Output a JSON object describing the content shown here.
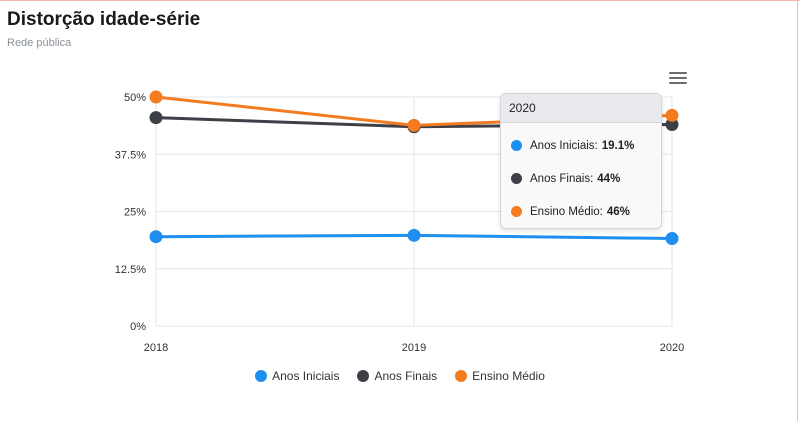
{
  "header": {
    "title": "Distorção idade-série",
    "subtitle": "Rede pública"
  },
  "menu_icon": "hamburger-menu-icon",
  "chart_data": {
    "type": "line",
    "x": [
      "2018",
      "2019",
      "2020"
    ],
    "yticks": [
      "0%",
      "12.5%",
      "25%",
      "37.5%",
      "50%"
    ],
    "ylim": [
      0,
      50
    ],
    "grid": true,
    "legend_position": "bottom",
    "series": [
      {
        "name": "Anos Iniciais",
        "color": "#1f8ef1",
        "values": [
          19.5,
          19.8,
          19.1
        ]
      },
      {
        "name": "Anos Finais",
        "color": "#3d4046",
        "values": [
          45.5,
          43.5,
          44
        ]
      },
      {
        "name": "Ensino Médio",
        "color": "#f47b20",
        "values": [
          50,
          43.8,
          46
        ]
      }
    ]
  },
  "tooltip": {
    "title": "2020",
    "rows": [
      {
        "label": "Anos Iniciais:",
        "value": "19.1%",
        "color": "#1f8ef1"
      },
      {
        "label": "Anos Finais:",
        "value": "44%",
        "color": "#3d4046"
      },
      {
        "label": "Ensino Médio:",
        "value": "46%",
        "color": "#f47b20"
      }
    ]
  },
  "legend": [
    {
      "label": "Anos Iniciais",
      "color": "#1f8ef1"
    },
    {
      "label": "Anos Finais",
      "color": "#3d4046"
    },
    {
      "label": "Ensino Médio",
      "color": "#f47b20"
    }
  ]
}
